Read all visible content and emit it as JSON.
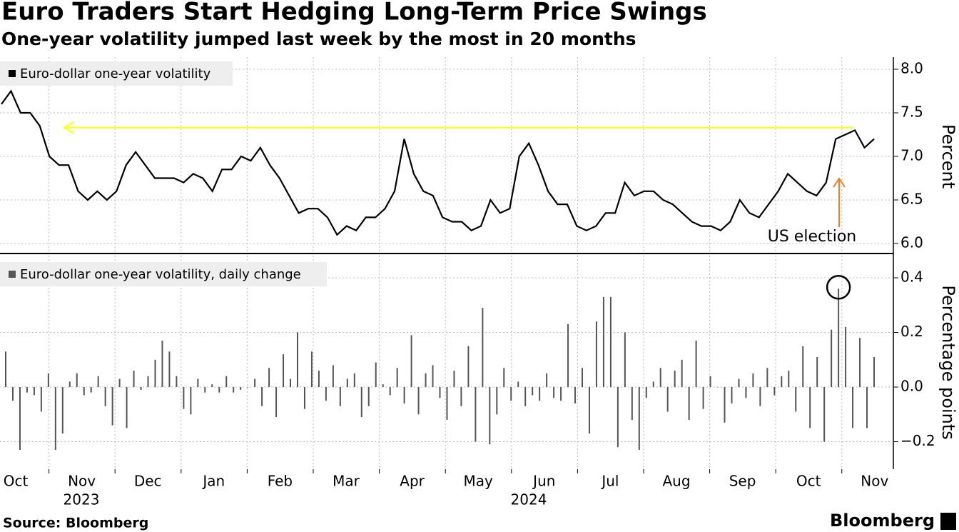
{
  "header": {
    "title": "Euro Traders Start Hedging Long-Term Price Swings",
    "subtitle": "One-year volatility jumped last week by the most in 20 months"
  },
  "x_axis": {
    "months": [
      "Oct",
      "Nov",
      "Dec",
      "Jan",
      "Feb",
      "Mar",
      "Apr",
      "May",
      "Jun",
      "Jul",
      "Aug",
      "Sep",
      "Oct",
      "Nov"
    ],
    "years": [
      "2023",
      "2024"
    ]
  },
  "chart_data": [
    {
      "type": "line",
      "series": [
        {
          "name": "Euro-dollar one-year volatility",
          "color": "#000000",
          "values": [
            7.6,
            7.75,
            7.5,
            7.5,
            7.35,
            7.0,
            6.9,
            6.9,
            6.6,
            6.5,
            6.6,
            6.5,
            6.6,
            6.9,
            7.05,
            6.9,
            6.75,
            6.75,
            6.75,
            6.7,
            6.8,
            6.75,
            6.6,
            6.85,
            6.85,
            7.0,
            6.95,
            7.1,
            6.9,
            6.75,
            6.55,
            6.35,
            6.4,
            6.4,
            6.3,
            6.1,
            6.2,
            6.15,
            6.3,
            6.3,
            6.4,
            6.6,
            7.2,
            6.8,
            6.6,
            6.55,
            6.3,
            6.25,
            6.25,
            6.15,
            6.2,
            6.5,
            6.35,
            6.4,
            7.0,
            7.15,
            6.9,
            6.6,
            6.45,
            6.45,
            6.2,
            6.15,
            6.2,
            6.35,
            6.35,
            6.7,
            6.55,
            6.6,
            6.6,
            6.5,
            6.45,
            6.35,
            6.25,
            6.2,
            6.2,
            6.15,
            6.25,
            6.5,
            6.35,
            6.3,
            6.45,
            6.6,
            6.8,
            6.7,
            6.6,
            6.55,
            6.7,
            7.2,
            7.25,
            7.3,
            7.1,
            7.2
          ]
        }
      ],
      "ylim": [
        5.9,
        8.1
      ],
      "yticks": [
        {
          "value": 6,
          "label": "6.0"
        },
        6.5,
        {
          "value": 7,
          "label": "7.0"
        },
        7.5,
        {
          "value": 8,
          "label": "8.0"
        }
      ],
      "y_label": "Percent",
      "reference_level": 7.33,
      "reference_color": "#ffff33",
      "annotation": "US election",
      "annotation_color": "#f07f1e",
      "grid": true
    },
    {
      "type": "bar",
      "series": [
        {
          "name": "Euro-dollar one-year volatility, daily change",
          "color": "#555555",
          "values": [
            0.13,
            -0.05,
            -0.23,
            -0.02,
            -0.03,
            -0.09,
            0.05,
            -0.23,
            -0.17,
            0.02,
            0.05,
            -0.03,
            -0.02,
            0.04,
            -0.07,
            -0.14,
            0.03,
            -0.15,
            0.06,
            -0.01,
            0.04,
            0.1,
            0.17,
            0.13,
            0.04,
            -0.08,
            -0.1,
            0.03,
            -0.02,
            0.01,
            -0.02,
            0.04,
            -0.02,
            -0.01,
            0.0,
            0.03,
            -0.07,
            0.07,
            -0.11,
            0.12,
            0.03,
            0.2,
            -0.08,
            0.13,
            0.06,
            -0.05,
            0.08,
            -0.07,
            0.03,
            0.05,
            -0.11,
            -0.07,
            0.09,
            0.01,
            -0.03,
            0.07,
            -0.06,
            0.19,
            -0.1,
            0.05,
            0.08,
            -0.04,
            -0.12,
            0.06,
            -0.07,
            0.15,
            -0.2,
            0.29,
            -0.21,
            -0.1,
            0.07,
            -0.05,
            0.02,
            -0.07,
            -0.03,
            -0.05,
            0.05,
            -0.04,
            -0.05,
            0.23,
            -0.06,
            0.07,
            -0.17,
            0.24,
            0.33,
            0.33,
            -0.22,
            0.2,
            -0.12,
            -0.23,
            -0.04,
            0.02,
            0.07,
            -0.09,
            0.06,
            0.1,
            -0.12,
            0.17,
            -0.08,
            0.04,
            0.0,
            -0.13,
            -0.06,
            0.03,
            -0.04,
            0.05,
            -0.07,
            0.07,
            -0.03,
            0.04,
            0.06,
            -0.09,
            0.15,
            -0.15,
            0.11,
            -0.2,
            0.21,
            0.36,
            0.22,
            -0.15,
            0.18,
            -0.15,
            0.11
          ]
        }
      ],
      "ylim": [
        -0.3,
        0.48
      ],
      "yticks": [
        {
          "value": -0.2,
          "label": "−0.2"
        },
        {
          "value": 0,
          "label": "0.0"
        },
        0.2,
        0.4
      ],
      "y_label": "Percentage points",
      "grid": true
    }
  ],
  "footer": {
    "source": "Source: Bloomberg",
    "brand": "Bloomberg"
  }
}
